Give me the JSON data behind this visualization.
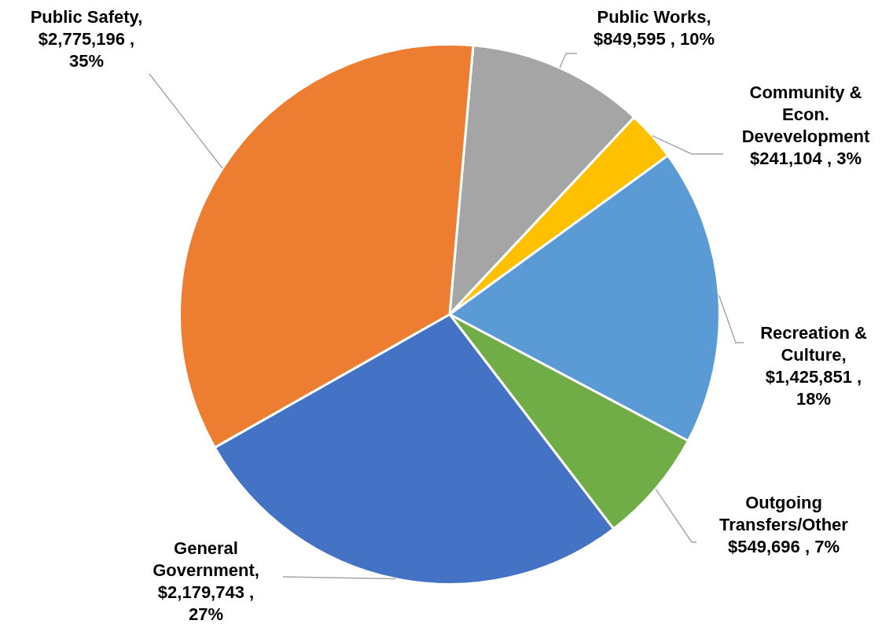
{
  "chart_data": {
    "type": "pie",
    "categories": [
      "Public Works",
      "Community & Econ. Devevelopment",
      "Recreation & Culture",
      "Outgoing Transfers/Other",
      "General Government",
      "Public Safety"
    ],
    "values": [
      849595,
      241104,
      1425851,
      549696,
      2179743,
      2775196
    ],
    "colors": [
      "#a5a5a5",
      "#ffc000",
      "#5b9bd5",
      "#70ad47",
      "#4472c4",
      "#ed7d31"
    ],
    "value_labels": [
      ", $849,595 , 10%",
      "$241,104 , 3%",
      ", $1,425,851 , 18%",
      "$549,696 , 7%",
      ", $2,179,743 , 27%",
      ", $2,775,196 , 35%"
    ]
  }
}
